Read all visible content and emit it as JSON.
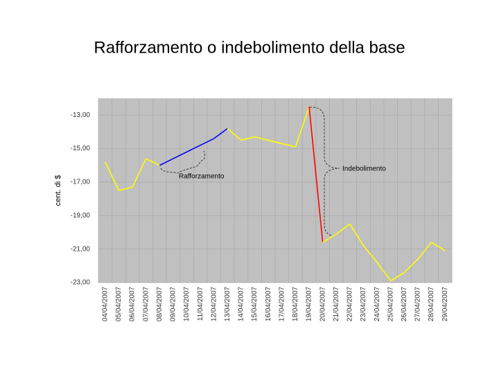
{
  "chart_data": {
    "type": "line",
    "title": "Rafforzamento o indebolimento della base",
    "y_label": "cent. di $",
    "categories": [
      "04/04/2007",
      "05/04/2007",
      "06/04/2007",
      "07/04/2007",
      "08/04/2007",
      "09/04/2007",
      "10/04/2007",
      "11/04/2007",
      "12/04/2007",
      "13/04/2007",
      "14/04/2007",
      "15/04/2007",
      "16/04/2007",
      "17/04/2007",
      "18/04/2007",
      "19/04/2007",
      "20/04/2007",
      "21/04/2007",
      "22/04/2007",
      "23/04/2007",
      "24/04/2007",
      "25/04/2007",
      "26/04/2007",
      "27/04/2007",
      "28/04/2007",
      "29/04/2007"
    ],
    "series": [
      {
        "color": "#ffff00",
        "values": [
          -15.8,
          -17.5,
          -17.3,
          -15.6,
          -16.0,
          -15.6,
          -15.2,
          -14.8,
          -14.4,
          -13.8,
          -14.5,
          -14.3,
          -14.5,
          -14.7,
          -14.9,
          -12.5,
          -20.6,
          -20.1,
          -19.5,
          -20.8,
          -21.8,
          -22.9,
          -22.4,
          -21.6,
          -20.6,
          -21.1
        ]
      }
    ],
    "highlights": [
      {
        "from": 4,
        "to": 9,
        "color": "#0000ff",
        "label": "Rafforzamento"
      },
      {
        "from": 15,
        "to": 16,
        "color": "#ff0000",
        "label": "Indebolimento"
      }
    ],
    "ylim": [
      -23,
      -12
    ],
    "yticks": [
      {
        "value": -13,
        "label": "-13,00"
      },
      {
        "value": -15,
        "label": "-15,00"
      },
      {
        "value": -17,
        "label": "-17,00"
      },
      {
        "value": -19,
        "label": "-19,00"
      },
      {
        "value": -21,
        "label": "-21,00"
      },
      {
        "value": -23,
        "label": "-23,00"
      }
    ],
    "grid": true,
    "background": "#c0c0c0"
  }
}
